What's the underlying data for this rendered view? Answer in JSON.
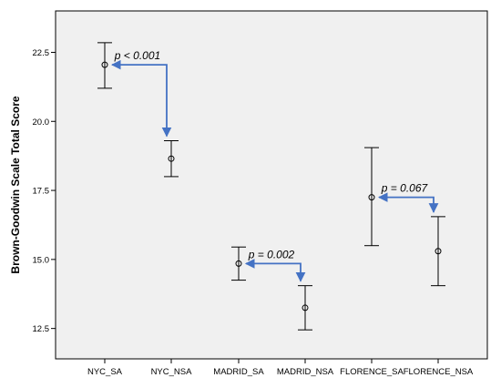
{
  "chart_data": {
    "type": "scatter",
    "subtype": "error-bar",
    "title": "",
    "xlabel": "",
    "ylabel": "Brown-Goodwin Scale Total Score",
    "ylim": [
      11.4,
      24.0
    ],
    "yticks": [
      "12.5",
      "15.0",
      "17.5",
      "20.0",
      "22.5"
    ],
    "grid": false,
    "categories": [
      "NYC_SA",
      "NYC_NSA",
      "MADRID_SA",
      "MADRID_NSA",
      "FLORENCE_SA",
      "FLORENCE_NSA"
    ],
    "points": [
      {
        "category": "NYC_SA",
        "mean": 22.05,
        "lower": 21.2,
        "upper": 22.85
      },
      {
        "category": "NYC_NSA",
        "mean": 18.65,
        "lower": 18.0,
        "upper": 19.3
      },
      {
        "category": "MADRID_SA",
        "mean": 14.85,
        "lower": 14.25,
        "upper": 15.45
      },
      {
        "category": "MADRID_NSA",
        "mean": 13.25,
        "lower": 12.45,
        "upper": 14.05
      },
      {
        "category": "FLORENCE_SA",
        "mean": 17.25,
        "lower": 15.5,
        "upper": 19.05
      },
      {
        "category": "FLORENCE_NSA",
        "mean": 15.3,
        "lower": 14.05,
        "upper": 16.55
      }
    ],
    "annotations": [
      {
        "text": "p < 0.001",
        "from": "NYC_SA",
        "to": "NYC_NSA"
      },
      {
        "text": "p = 0.002",
        "from": "MADRID_SA",
        "to": "MADRID_NSA"
      },
      {
        "text": "p = 0.067",
        "from": "FLORENCE_SA",
        "to": "FLORENCE_NSA"
      }
    ],
    "colors": {
      "plot_background": "#f0f0f0",
      "arrow": "#4472c4",
      "marker": "#000000"
    }
  }
}
